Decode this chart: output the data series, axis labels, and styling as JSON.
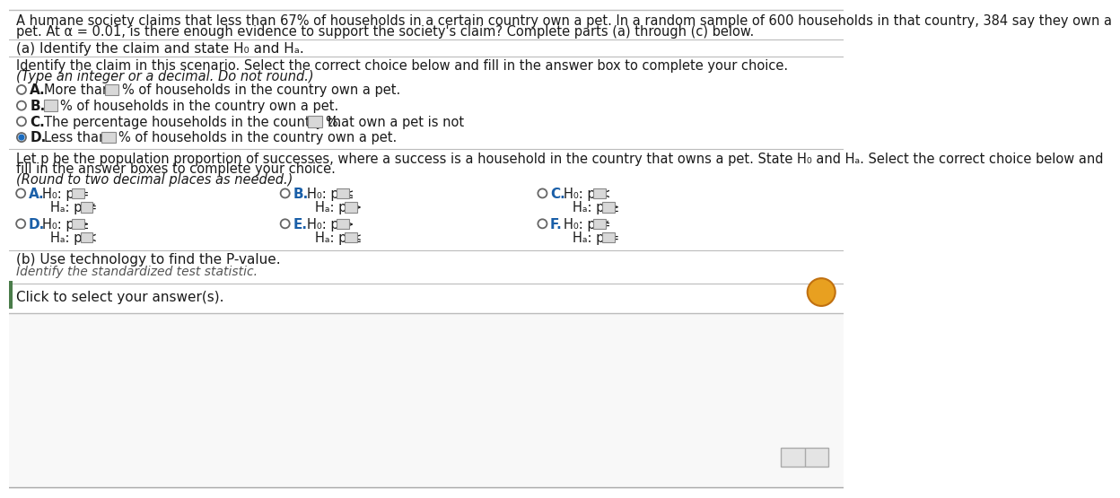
{
  "bg_color": "#f0f0f0",
  "white": "#ffffff",
  "black": "#000000",
  "blue": "#1a5fa8",
  "dark_gray": "#1a1a1a",
  "light_gray": "#c0c0c0",
  "medium_gray": "#999999",
  "header_line1": "A humane society claims that less than 67% of households in a certain country own a pet. In a random sample of 600 households in that country, 384 say they own a",
  "header_line2": "pet. At α = 0.01, is there enough evidence to support the society's claim? Complete parts (a) through (c) below.",
  "part_a_header": "(a) Identify the claim and state H₀ and Hₐ.",
  "identify_line1": "Identify the claim in this scenario. Select the correct choice below and fill in the answer box to complete your choice.",
  "identify_line2": "(Type an integer or a decimal. Do not round.)",
  "choice_A_pre": "More than",
  "choice_A_post": "% of households in the country own a pet.",
  "choice_B_post": "% of households in the country own a pet.",
  "choice_C_pre": "The percentage households in the country that own a pet is not",
  "choice_C_post": "%.",
  "choice_D_pre": "Less than",
  "choice_D_post": "% of households in the country own a pet.",
  "let_p_line1": "Let p be the population proportion of successes, where a success is a household in the country that owns a pet. State H₀ and Hₐ. Select the correct choice below and",
  "let_p_line2": "fill in the answer boxes to complete your choice.",
  "round_note": "(Round to two decimal places as needed.)",
  "hyp_A_h0": "H₀: p =",
  "hyp_A_ha": "Hₐ: p ≠",
  "hyp_B_h0": "H₀: p ≤",
  "hyp_B_ha": "Hₐ: p >",
  "hyp_C_h0": "H₀: p <",
  "hyp_C_ha": "Hₐ: p ≥",
  "hyp_D_h0": "H₀: p ≥",
  "hyp_D_ha": "Hₐ: p <",
  "hyp_E_h0": "H₀: p >",
  "hyp_E_ha": "Hₐ: p ≤",
  "hyp_F_h0": "H₀: p ≠",
  "hyp_F_ha": "Hₐ: p =",
  "part_b_header": "(b) Use technology to find the P-value.",
  "identify_std": "Identify the standardized test statistic.",
  "click_text": "Click to select your answer(s).",
  "yellow_circle_color": "#e8a020",
  "selected_radio_color": "#1a6bbf",
  "radio_border": "#666666",
  "green_tab_color": "#4a8a4a",
  "separator_color": "#cccccc"
}
